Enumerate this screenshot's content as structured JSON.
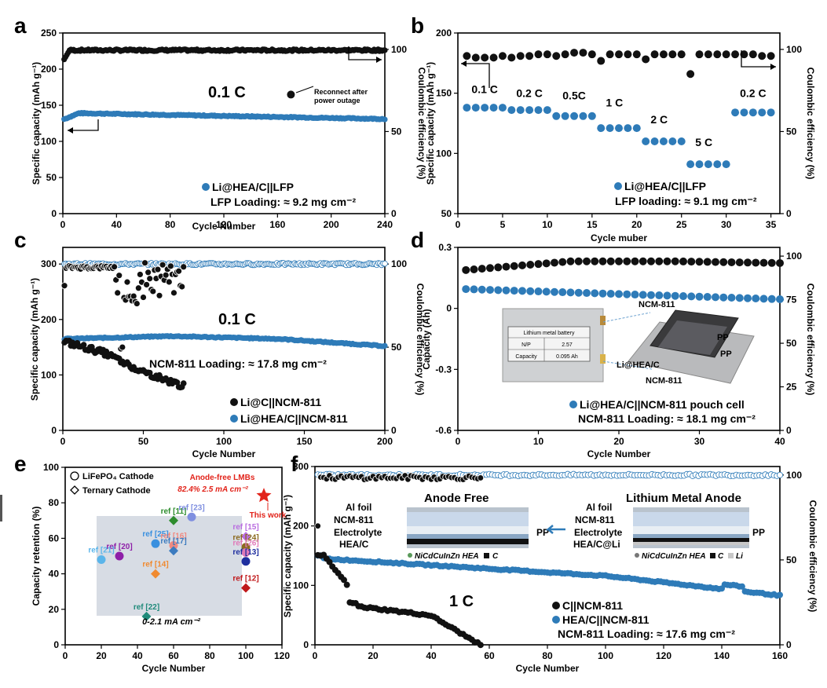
{
  "colors": {
    "blue": "#2e7bb8",
    "black": "#111111",
    "gray": "#d7dce4",
    "red": "#e2231a"
  },
  "chart_data": [
    {
      "id": "a",
      "type": "scatter",
      "label": "a",
      "xlabel": "Cycle Number",
      "ylabel": "Specific capacity (mAh g⁻¹)",
      "y2label": "Coulombic efficiency (%)",
      "xlim": [
        0,
        240
      ],
      "ylim": [
        0,
        250
      ],
      "y2lim": [
        0,
        110
      ],
      "xticks": [
        0,
        40,
        80,
        120,
        160,
        200,
        240
      ],
      "yticks": [
        0,
        50,
        100,
        150,
        200,
        250
      ],
      "y2ticks": [
        0,
        50,
        100
      ],
      "annotation": "0.1 C",
      "note": "Reconnect after power outage",
      "legend": "Li@HEA/C||LFP",
      "loading": "LFP Loading: ≈ 9.2 mg cm⁻²",
      "capacity_start": 130,
      "capacity_plateau": 139,
      "capacity_end": 131,
      "ce": [
        93,
        100
      ],
      "outlier_cycle": 170,
      "outlier_ce": 73
    },
    {
      "id": "b",
      "type": "scatter",
      "label": "b",
      "xlabel": "Cycle muber",
      "ylabel": "Specific capacity (mAh g⁻¹)",
      "y2label": "Coulombic efficiency (%)",
      "xlim": [
        0,
        36
      ],
      "ylim": [
        50,
        200
      ],
      "y2lim": [
        0,
        110
      ],
      "xticks": [
        0,
        5,
        10,
        15,
        20,
        25,
        30,
        35
      ],
      "yticks": [
        50,
        100,
        150,
        200
      ],
      "y2ticks": [
        0,
        50,
        100
      ],
      "rates": [
        "0.1 C",
        "0.2 C",
        "0.5C",
        "1 C",
        "2 C",
        "5 C",
        "0.2 C"
      ],
      "capacity": [
        138,
        138,
        138,
        138,
        138,
        136,
        136,
        136,
        136,
        136,
        131,
        131,
        131,
        131,
        131,
        121,
        121,
        121,
        121,
        121,
        110,
        110,
        110,
        110,
        110,
        91,
        91,
        91,
        91,
        91,
        134,
        134,
        134,
        134,
        134
      ],
      "ce": [
        96,
        95,
        95,
        95,
        96,
        95,
        96,
        96,
        97,
        97,
        96,
        97,
        98,
        98,
        97,
        93,
        97,
        97,
        97,
        97,
        94,
        97,
        97,
        97,
        97,
        85,
        97,
        97,
        97,
        97,
        97,
        97,
        97,
        96,
        96
      ],
      "legend": "Li@HEA/C||LFP",
      "loading": "LFP loading: ≈ 9.1 mg cm⁻²"
    },
    {
      "id": "c",
      "type": "scatter",
      "label": "c",
      "xlabel": "Cycle Number",
      "ylabel": "Specific capacity (mAh g⁻¹)",
      "y2label": "Coulombic efficiency (%)",
      "xlim": [
        0,
        200
      ],
      "ylim": [
        0,
        330
      ],
      "y2lim": [
        0,
        110
      ],
      "xticks": [
        0,
        50,
        100,
        150,
        200
      ],
      "yticks": [
        0,
        100,
        200,
        300
      ],
      "y2ticks": [
        0,
        50,
        100
      ],
      "annotation": "0.1 C",
      "loading": "NCM-811 Loading: ≈ 17.8 mg cm⁻²",
      "legend1": "Li@C||NCM-811",
      "legend2": "Li@HEA/C||NCM-811",
      "blue_cap": [
        165,
        170,
        165,
        152
      ],
      "black_cap": [
        160,
        140,
        105,
        80
      ],
      "cycles_black": 75
    },
    {
      "id": "d",
      "type": "scatter",
      "label": "d",
      "xlabel": "Cycle Number",
      "ylabel": "Capacity (Ah)",
      "y2label": "Coulombic efficiency (%)",
      "xlim": [
        0,
        40
      ],
      "ylim": [
        -0.6,
        0.3
      ],
      "y2lim": [
        0,
        105
      ],
      "xticks": [
        0,
        10,
        20,
        30,
        40
      ],
      "yticks": [
        -0.6,
        -0.3,
        0.0,
        0.3
      ],
      "y2ticks": [
        0,
        25,
        50,
        75,
        100
      ],
      "legend": "Li@HEA/C||NCM-811 pouch cell",
      "loading": "NCM-811 Loading: ≈ 18.1 mg cm⁻²",
      "capacity_start": 0.095,
      "capacity_end": 0.045,
      "ce": [
        92,
        97,
        97,
        96
      ],
      "photo": {
        "table_title": "Lithium metal battery",
        "rows": [
          [
            "N/P",
            "2.57"
          ],
          [
            "Capacity",
            "0.095 Ah"
          ]
        ],
        "labels": [
          "NCM-811",
          "PP",
          "PP",
          "Li@HEA/C",
          "NCM-811"
        ]
      }
    },
    {
      "id": "e",
      "type": "scatter",
      "label": "e",
      "xlabel": "Cycle Number",
      "ylabel": "Capacity retention (%)",
      "xlim": [
        0,
        120
      ],
      "ylim": [
        0,
        100
      ],
      "xticks": [
        0,
        20,
        40,
        60,
        80,
        100,
        120
      ],
      "yticks": [
        0,
        20,
        40,
        60,
        80,
        100
      ],
      "legend_circle": "LiFePO₄ Cathode",
      "legend_diamond": "Ternary Cathode",
      "anode_free_title": "Anode-free LMBs",
      "anode_free_val": "82.4%  2.5 mA cm⁻²",
      "this_work": "This work",
      "this_work_point": [
        110,
        84
      ],
      "range_label": "0-2.1 mA cm⁻²",
      "refs": [
        {
          "name": "ref [20]",
          "x": 30,
          "y": 50,
          "shape": "circle",
          "color": "#8e1fa8"
        },
        {
          "name": "ref [21]",
          "x": 20,
          "y": 48,
          "shape": "circle",
          "color": "#5bb5ea"
        },
        {
          "name": "ref [25]",
          "x": 50,
          "y": 57,
          "shape": "circle",
          "color": "#3a90df"
        },
        {
          "name": "ref [11]",
          "x": 60,
          "y": 70,
          "shape": "diamond",
          "color": "#2d8c2d"
        },
        {
          "name": "ref [23]",
          "x": 70,
          "y": 72,
          "shape": "circle",
          "color": "#7f8fe0"
        },
        {
          "name": "ref [16]",
          "x": 60,
          "y": 56,
          "shape": "circle",
          "color": "#f08a80"
        },
        {
          "name": "ref [17]",
          "x": 60,
          "y": 53,
          "shape": "diamond",
          "color": "#3c7bbf"
        },
        {
          "name": "ref [14]",
          "x": 50,
          "y": 40,
          "shape": "diamond",
          "color": "#f08a30"
        },
        {
          "name": "ref [15]",
          "x": 100,
          "y": 61,
          "shape": "diamond",
          "color": "#b96de0"
        },
        {
          "name": "ref [24]",
          "x": 100,
          "y": 55,
          "shape": "circle",
          "color": "#8b6a1f"
        },
        {
          "name": "ref [26]",
          "x": 100,
          "y": 52,
          "shape": "circle",
          "color": "#e07ab8"
        },
        {
          "name": "ref [13]",
          "x": 100,
          "y": 47,
          "shape": "circle",
          "color": "#1f2f9f"
        },
        {
          "name": "ref [12]",
          "x": 100,
          "y": 32,
          "shape": "diamond",
          "color": "#c0181a"
        },
        {
          "name": "ref [22]",
          "x": 45,
          "y": 16,
          "shape": "diamond",
          "color": "#1f8a7a"
        }
      ]
    },
    {
      "id": "f",
      "type": "scatter",
      "label": "f",
      "xlabel": "Cycle Number",
      "ylabel": "Specific capacity (mAh g⁻¹)",
      "y2label": "Coulombic efficiency (%)",
      "xlim": [
        0,
        160
      ],
      "ylim": [
        0,
        300
      ],
      "y2lim": [
        0,
        105
      ],
      "xticks": [
        0,
        20,
        40,
        60,
        80,
        100,
        120,
        140,
        160
      ],
      "yticks": [
        0,
        100,
        200,
        300
      ],
      "y2ticks": [
        0,
        50,
        100
      ],
      "annotation": "1 C",
      "legend1": "C||NCM-811",
      "legend2": "HEA/C||NCM-811",
      "loading": "NCM-811 Loading: ≈ 17.6 mg cm⁻²",
      "schematic": {
        "left_title": "Anode Free",
        "right_title": "Lithium Metal Anode",
        "left_layers": [
          "Al foil",
          "NCM-811",
          "Electrolyte",
          "HEA/C"
        ],
        "right_layers": [
          "Al foil",
          "NCM-811",
          "Electrolyte",
          "HEA/C@Li"
        ],
        "pp": "PP",
        "pp2": "PP",
        "left_legend": "NiCdCuInZn HEA",
        "left_c": "C",
        "right_legend": "NiCdCuInZn HEA",
        "right_c": "C",
        "right_li": "Li"
      }
    }
  ]
}
